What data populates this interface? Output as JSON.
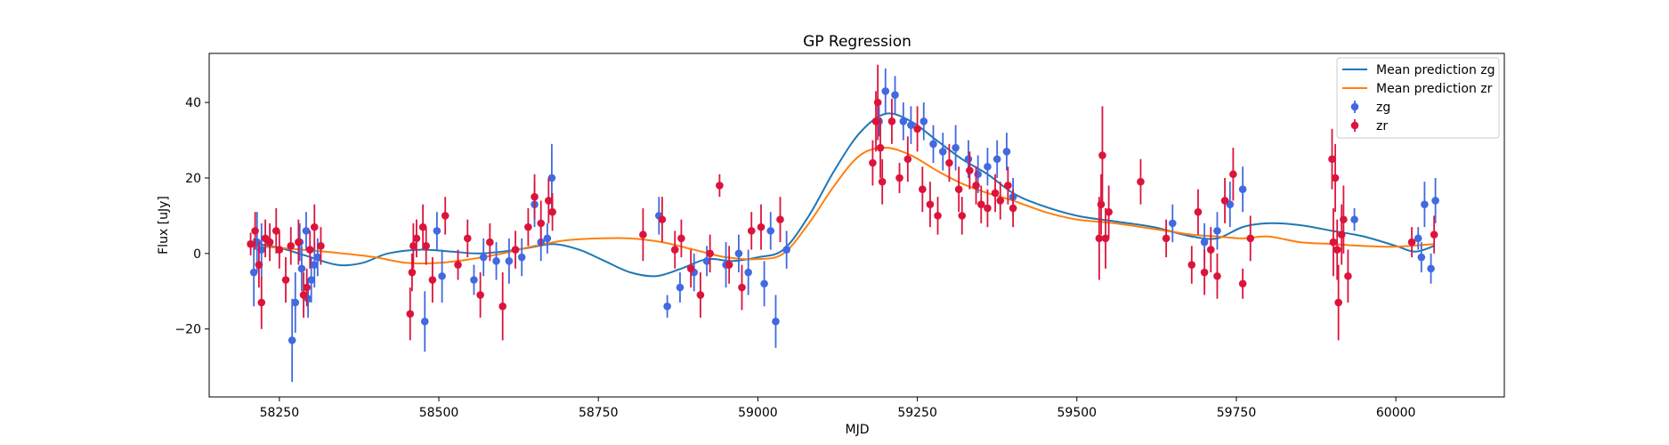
{
  "chart_data": {
    "type": "scatter",
    "title": "GP Regression",
    "xlabel": "MJD",
    "ylabel": "Flux [uJy]",
    "xlim": [
      58140,
      60170
    ],
    "ylim": [
      -38,
      53
    ],
    "xticks": [
      58250,
      58500,
      58750,
      59000,
      59250,
      59500,
      59750,
      60000
    ],
    "yticks": [
      -20,
      0,
      20,
      40
    ],
    "xtick_labels": [
      "58250",
      "58500",
      "58750",
      "59000",
      "59250",
      "59500",
      "59750",
      "60000"
    ],
    "ytick_labels": [
      "−20",
      "0",
      "20",
      "40"
    ],
    "grid": false,
    "legend_position": "top-right",
    "legend": [
      {
        "label": "Mean prediction zg",
        "kind": "line",
        "color": "#1f77b4"
      },
      {
        "label": "Mean prediction zr",
        "kind": "line",
        "color": "#ff7f0e"
      },
      {
        "label": "zg",
        "kind": "errorbar",
        "color": "#4169e1"
      },
      {
        "label": "zr",
        "kind": "errorbar",
        "color": "#dc143c"
      }
    ],
    "lines": [
      {
        "name": "Mean prediction zg",
        "color": "#1f77b4",
        "points": [
          [
            58200,
            3
          ],
          [
            58250,
            1.5
          ],
          [
            58290,
            -0.5
          ],
          [
            58340,
            -3
          ],
          [
            58380,
            -2.5
          ],
          [
            58420,
            0
          ],
          [
            58470,
            1
          ],
          [
            58520,
            0.5
          ],
          [
            58560,
            0
          ],
          [
            58600,
            0.5
          ],
          [
            58640,
            1.5
          ],
          [
            58680,
            2.5
          ],
          [
            58720,
            1
          ],
          [
            58760,
            -2
          ],
          [
            58800,
            -5
          ],
          [
            58840,
            -6
          ],
          [
            58880,
            -4
          ],
          [
            58920,
            -1.5
          ],
          [
            58960,
            -2
          ],
          [
            59000,
            -1
          ],
          [
            59040,
            1
          ],
          [
            59080,
            10
          ],
          [
            59120,
            22
          ],
          [
            59160,
            32
          ],
          [
            59200,
            37
          ],
          [
            59240,
            35
          ],
          [
            59280,
            30
          ],
          [
            59320,
            25
          ],
          [
            59360,
            21
          ],
          [
            59400,
            16
          ],
          [
            59440,
            13
          ],
          [
            59500,
            10
          ],
          [
            59560,
            8.5
          ],
          [
            59620,
            7
          ],
          [
            59680,
            4.5
          ],
          [
            59720,
            4
          ],
          [
            59760,
            7
          ],
          [
            59800,
            8
          ],
          [
            59850,
            7.5
          ],
          [
            59900,
            6
          ],
          [
            59950,
            4.5
          ],
          [
            60000,
            2
          ],
          [
            60030,
            0.5
          ],
          [
            60060,
            2
          ]
        ]
      },
      {
        "name": "Mean prediction zr",
        "color": "#ff7f0e",
        "points": [
          [
            58200,
            2
          ],
          [
            58250,
            1.5
          ],
          [
            58300,
            0.8
          ],
          [
            58350,
            0
          ],
          [
            58400,
            -1
          ],
          [
            58450,
            -2.5
          ],
          [
            58500,
            -2.5
          ],
          [
            58550,
            -1.5
          ],
          [
            58600,
            0
          ],
          [
            58650,
            2
          ],
          [
            58700,
            3.5
          ],
          [
            58750,
            4
          ],
          [
            58800,
            4
          ],
          [
            58850,
            3
          ],
          [
            58900,
            1
          ],
          [
            58950,
            -1
          ],
          [
            59000,
            -1.5
          ],
          [
            59040,
            0
          ],
          [
            59080,
            8
          ],
          [
            59120,
            18
          ],
          [
            59160,
            26
          ],
          [
            59200,
            28
          ],
          [
            59240,
            26
          ],
          [
            59280,
            22
          ],
          [
            59320,
            18.5
          ],
          [
            59360,
            16
          ],
          [
            59400,
            14
          ],
          [
            59450,
            11
          ],
          [
            59500,
            9
          ],
          [
            59560,
            8
          ],
          [
            59620,
            6.5
          ],
          [
            59680,
            5
          ],
          [
            59720,
            4.5
          ],
          [
            59760,
            4
          ],
          [
            59800,
            4.5
          ],
          [
            59850,
            3
          ],
          [
            59900,
            2.5
          ],
          [
            59950,
            2
          ],
          [
            60000,
            1.8
          ],
          [
            60060,
            2.5
          ]
        ]
      }
    ],
    "series": [
      {
        "name": "zg",
        "color": "#4169e1",
        "points": [
          [
            58210,
            -5,
            9
          ],
          [
            58215,
            3,
            8
          ],
          [
            58222,
            1,
            7
          ],
          [
            58270,
            -23,
            11
          ],
          [
            58275,
            -13,
            8
          ],
          [
            58282,
            3,
            5
          ],
          [
            58285,
            -4,
            6
          ],
          [
            58292,
            6,
            5
          ],
          [
            58295,
            -12,
            5
          ],
          [
            58300,
            -7,
            6
          ],
          [
            58305,
            -3,
            6
          ],
          [
            58310,
            -1,
            5
          ],
          [
            58478,
            -18,
            8
          ],
          [
            58497,
            6,
            5
          ],
          [
            58505,
            -6,
            7
          ],
          [
            58555,
            -7,
            4
          ],
          [
            58570,
            -1,
            5
          ],
          [
            58590,
            -2,
            5
          ],
          [
            58610,
            -2,
            6
          ],
          [
            58630,
            -1,
            5
          ],
          [
            58650,
            13,
            6
          ],
          [
            58660,
            3,
            5
          ],
          [
            58670,
            4,
            4
          ],
          [
            58677,
            20,
            9
          ],
          [
            58845,
            10,
            5
          ],
          [
            58858,
            -14,
            3
          ],
          [
            58878,
            -9,
            4
          ],
          [
            58900,
            -5,
            5
          ],
          [
            58920,
            -2,
            4
          ],
          [
            58950,
            -3,
            6
          ],
          [
            58970,
            0,
            5
          ],
          [
            58985,
            -5,
            6
          ],
          [
            59010,
            -8,
            6
          ],
          [
            59020,
            6,
            5
          ],
          [
            59028,
            -18,
            7
          ],
          [
            59045,
            1,
            5
          ],
          [
            59190,
            35,
            4
          ],
          [
            59200,
            43,
            6
          ],
          [
            59215,
            42,
            5
          ],
          [
            59228,
            35,
            5
          ],
          [
            59240,
            34,
            5
          ],
          [
            59260,
            35,
            5
          ],
          [
            59275,
            29,
            5
          ],
          [
            59290,
            27,
            5
          ],
          [
            59310,
            28,
            6
          ],
          [
            59330,
            25,
            5
          ],
          [
            59345,
            21,
            5
          ],
          [
            59360,
            23,
            5
          ],
          [
            59375,
            25,
            5
          ],
          [
            59390,
            27,
            5
          ],
          [
            59400,
            15,
            5
          ],
          [
            59650,
            8,
            5
          ],
          [
            59700,
            3,
            5
          ],
          [
            59720,
            6,
            5
          ],
          [
            59740,
            13,
            6
          ],
          [
            59760,
            17,
            6
          ],
          [
            59935,
            9,
            3
          ],
          [
            60035,
            4,
            3
          ],
          [
            60040,
            -1,
            4
          ],
          [
            60045,
            13,
            6
          ],
          [
            60055,
            -4,
            4
          ],
          [
            60062,
            14,
            6
          ]
        ]
      },
      {
        "name": "zr",
        "color": "#dc143c",
        "points": [
          [
            58205,
            2.5,
            3
          ],
          [
            58212,
            6,
            5
          ],
          [
            58218,
            -3,
            6
          ],
          [
            58222,
            -13,
            7
          ],
          [
            58228,
            4,
            5
          ],
          [
            58235,
            3,
            5
          ],
          [
            58245,
            6,
            6
          ],
          [
            58250,
            1,
            5
          ],
          [
            58260,
            -7,
            6
          ],
          [
            58268,
            2,
            5
          ],
          [
            58280,
            3,
            6
          ],
          [
            58288,
            -11,
            6
          ],
          [
            58293,
            -9,
            5
          ],
          [
            58298,
            1,
            5
          ],
          [
            58305,
            7,
            6
          ],
          [
            58315,
            2,
            5
          ],
          [
            58455,
            -16,
            7
          ],
          [
            58458,
            -5,
            5
          ],
          [
            58460,
            2,
            6
          ],
          [
            58465,
            4,
            5
          ],
          [
            58475,
            7,
            6
          ],
          [
            58480,
            2,
            5
          ],
          [
            58490,
            -7,
            6
          ],
          [
            58510,
            10,
            5
          ],
          [
            58530,
            -3,
            4
          ],
          [
            58545,
            4,
            5
          ],
          [
            58565,
            -11,
            6
          ],
          [
            58580,
            3,
            5
          ],
          [
            58600,
            -14,
            9
          ],
          [
            58620,
            1,
            5
          ],
          [
            58640,
            7,
            5
          ],
          [
            58650,
            15,
            6
          ],
          [
            58660,
            8,
            6
          ],
          [
            58672,
            14,
            6
          ],
          [
            58678,
            11,
            5
          ],
          [
            58820,
            5,
            7
          ],
          [
            58850,
            9,
            6
          ],
          [
            58870,
            1,
            5
          ],
          [
            58880,
            4,
            5
          ],
          [
            58895,
            -4,
            5
          ],
          [
            58910,
            -11,
            6
          ],
          [
            58925,
            0,
            5
          ],
          [
            58940,
            18,
            3
          ],
          [
            58955,
            -3,
            5
          ],
          [
            58975,
            -9,
            6
          ],
          [
            58990,
            6,
            5
          ],
          [
            59005,
            7,
            6
          ],
          [
            59035,
            9,
            6
          ],
          [
            59180,
            24,
            6
          ],
          [
            59185,
            35,
            8
          ],
          [
            59188,
            40,
            10
          ],
          [
            59192,
            28,
            8
          ],
          [
            59195,
            19,
            6
          ],
          [
            59210,
            35,
            6
          ],
          [
            59222,
            20,
            4
          ],
          [
            59235,
            25,
            6
          ],
          [
            59250,
            33,
            6
          ],
          [
            59258,
            17,
            6
          ],
          [
            59270,
            13,
            6
          ],
          [
            59282,
            10,
            5
          ],
          [
            59300,
            24,
            5
          ],
          [
            59315,
            17,
            6
          ],
          [
            59320,
            10,
            5
          ],
          [
            59332,
            22,
            5
          ],
          [
            59342,
            18,
            5
          ],
          [
            59350,
            13,
            5
          ],
          [
            59360,
            12,
            5
          ],
          [
            59372,
            16,
            5
          ],
          [
            59380,
            14,
            5
          ],
          [
            59392,
            18,
            5
          ],
          [
            59400,
            12,
            5
          ],
          [
            59535,
            4,
            11
          ],
          [
            59538,
            13,
            8
          ],
          [
            59540,
            26,
            13
          ],
          [
            59545,
            4,
            8
          ],
          [
            59550,
            11,
            7
          ],
          [
            59600,
            19,
            6
          ],
          [
            59640,
            4,
            5
          ],
          [
            59680,
            -3,
            5
          ],
          [
            59690,
            11,
            6
          ],
          [
            59700,
            -5,
            6
          ],
          [
            59710,
            1,
            6
          ],
          [
            59720,
            -6,
            6
          ],
          [
            59732,
            14,
            6
          ],
          [
            59745,
            21,
            7
          ],
          [
            59760,
            -8,
            4
          ],
          [
            59772,
            4,
            6
          ],
          [
            59900,
            25,
            8
          ],
          [
            59902,
            3,
            9
          ],
          [
            59905,
            20,
            9
          ],
          [
            59908,
            1,
            8
          ],
          [
            59910,
            -13,
            10
          ],
          [
            59915,
            5,
            8
          ],
          [
            59918,
            9,
            9
          ],
          [
            59925,
            -6,
            7
          ],
          [
            60025,
            3,
            4
          ],
          [
            60060,
            5,
            5
          ]
        ]
      }
    ]
  }
}
